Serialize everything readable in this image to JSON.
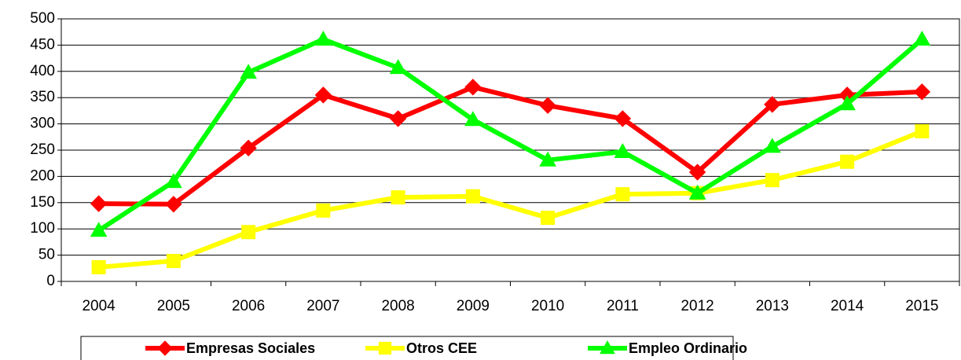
{
  "chart_data": {
    "type": "line",
    "categories": [
      "2004",
      "2005",
      "2006",
      "2007",
      "2008",
      "2009",
      "2010",
      "2011",
      "2012",
      "2013",
      "2014",
      "2015"
    ],
    "series": [
      {
        "name": "Empresas Sociales",
        "color": "#ff0000",
        "marker": "diamond",
        "values": [
          148,
          147,
          254,
          355,
          310,
          370,
          335,
          310,
          208,
          337,
          355,
          361
        ]
      },
      {
        "name": "Otros CEE",
        "color": "#ffff00",
        "marker": "square",
        "values": [
          27,
          39,
          94,
          135,
          160,
          162,
          121,
          166,
          168,
          193,
          228,
          286
        ]
      },
      {
        "name": "Empleo Ordinario",
        "color": "#00ff00",
        "marker": "triangle",
        "values": [
          97,
          190,
          398,
          461,
          407,
          308,
          231,
          247,
          168,
          257,
          338,
          461
        ]
      }
    ],
    "ylim": [
      0,
      500
    ],
    "yticks": [
      0,
      50,
      100,
      150,
      200,
      250,
      300,
      350,
      400,
      450,
      500
    ],
    "grid": true,
    "legend": "bottom"
  }
}
